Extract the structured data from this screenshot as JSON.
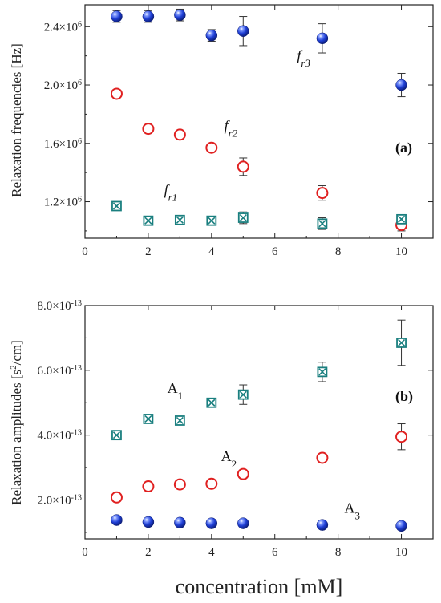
{
  "figure": {
    "xlabel": "concentration [mM]"
  },
  "chart_data": [
    {
      "type": "scatter",
      "panel_label": "(a)",
      "xlabel": "",
      "ylabel": "Relaxation frequencies [Hz]",
      "xlim": [
        0,
        11
      ],
      "ylim": [
        950000,
        2550000
      ],
      "xticks": [
        0,
        2,
        4,
        6,
        8,
        10
      ],
      "yticks": [
        1200000,
        1600000,
        2000000,
        2400000
      ],
      "ytick_labels": [
        {
          "mantissa": "1.2×10",
          "exp": "6"
        },
        {
          "mantissa": "1.6×10",
          "exp": "6"
        },
        {
          "mantissa": "2.0×10",
          "exp": "6"
        },
        {
          "mantissa": "2.4×10",
          "exp": "6"
        }
      ],
      "annotations": [
        {
          "base": "f",
          "sub": "r1",
          "x": 2.5,
          "y": 1250000
        },
        {
          "base": "f",
          "sub": "r2",
          "x": 4.4,
          "y": 1690000
        },
        {
          "base": "f",
          "sub": "r3",
          "x": 6.7,
          "y": 2170000
        }
      ],
      "series": [
        {
          "marker": "sphere",
          "color": "#1f3fd6",
          "x": [
            1,
            2,
            3,
            4,
            5,
            7.5,
            10
          ],
          "y": [
            2470000,
            2470000,
            2480000,
            2340000,
            2370000,
            2320000,
            2000000
          ],
          "err": [
            40000,
            40000,
            40000,
            40000,
            100000,
            100000,
            80000
          ]
        },
        {
          "marker": "open-circle",
          "color": "#e02020",
          "x": [
            1,
            2,
            3,
            4,
            5,
            7.5,
            10
          ],
          "y": [
            1940000,
            1700000,
            1660000,
            1570000,
            1440000,
            1260000,
            1040000
          ],
          "err": [
            20000,
            20000,
            20000,
            20000,
            60000,
            50000,
            40000
          ]
        },
        {
          "marker": "boxed-x",
          "color": "#1a7f7f",
          "x": [
            1,
            2,
            3,
            4,
            5,
            7.5,
            10
          ],
          "y": [
            1170000,
            1070000,
            1075000,
            1070000,
            1090000,
            1050000,
            1080000
          ],
          "err": [
            20000,
            20000,
            20000,
            20000,
            40000,
            40000,
            30000
          ]
        }
      ]
    },
    {
      "type": "scatter",
      "panel_label": "(b)",
      "xlabel": "concentration [mM]",
      "ylabel_parts": {
        "pre": "Relaxation amplitudes [s",
        "sup": "2",
        "post": "/cm]"
      },
      "xlim": [
        0,
        11
      ],
      "ylim": [
        8e-14,
        8e-13
      ],
      "xticks": [
        0,
        2,
        4,
        6,
        8,
        10
      ],
      "yticks": [
        2e-13,
        4e-13,
        6e-13,
        8e-13
      ],
      "ytick_labels": [
        {
          "mantissa": "2.0×10",
          "exp": "-13"
        },
        {
          "mantissa": "4.0×10",
          "exp": "-13"
        },
        {
          "mantissa": "6.0×10",
          "exp": "-13"
        },
        {
          "mantissa": "8.0×10",
          "exp": "-13"
        }
      ],
      "annotations": [
        {
          "base": "A",
          "sub": "1",
          "x": 2.6,
          "y": 5.3e-13
        },
        {
          "base": "A",
          "sub": "2",
          "x": 4.3,
          "y": 3.2e-13
        },
        {
          "base": "A",
          "sub": "3",
          "x": 8.2,
          "y": 1.6e-13
        }
      ],
      "series": [
        {
          "marker": "boxed-x",
          "color": "#1a7f7f",
          "x": [
            1,
            2,
            3,
            4,
            5,
            7.5,
            10
          ],
          "y": [
            4e-13,
            4.5e-13,
            4.45e-13,
            5e-13,
            5.25e-13,
            5.95e-13,
            6.85e-13
          ],
          "err": [
            5e-15,
            5e-15,
            5e-15,
            5e-15,
            3e-14,
            3e-14,
            7e-14
          ]
        },
        {
          "marker": "open-circle",
          "color": "#e02020",
          "x": [
            1,
            2,
            3,
            4,
            5,
            7.5,
            10
          ],
          "y": [
            2.08e-13,
            2.42e-13,
            2.48e-13,
            2.5e-13,
            2.8e-13,
            3.3e-13,
            3.95e-13
          ],
          "err": [
            5e-15,
            5e-15,
            5e-15,
            5e-15,
            5e-15,
            5e-15,
            4e-14
          ]
        },
        {
          "marker": "sphere",
          "color": "#1f3fd6",
          "x": [
            1,
            2,
            3,
            4,
            5,
            7.5,
            10
          ],
          "y": [
            1.38e-13,
            1.32e-13,
            1.3e-13,
            1.28e-13,
            1.28e-13,
            1.23e-13,
            1.2e-13
          ],
          "err": [
            5e-15,
            5e-15,
            5e-15,
            5e-15,
            5e-15,
            5e-15,
            5e-15
          ]
        }
      ]
    }
  ]
}
